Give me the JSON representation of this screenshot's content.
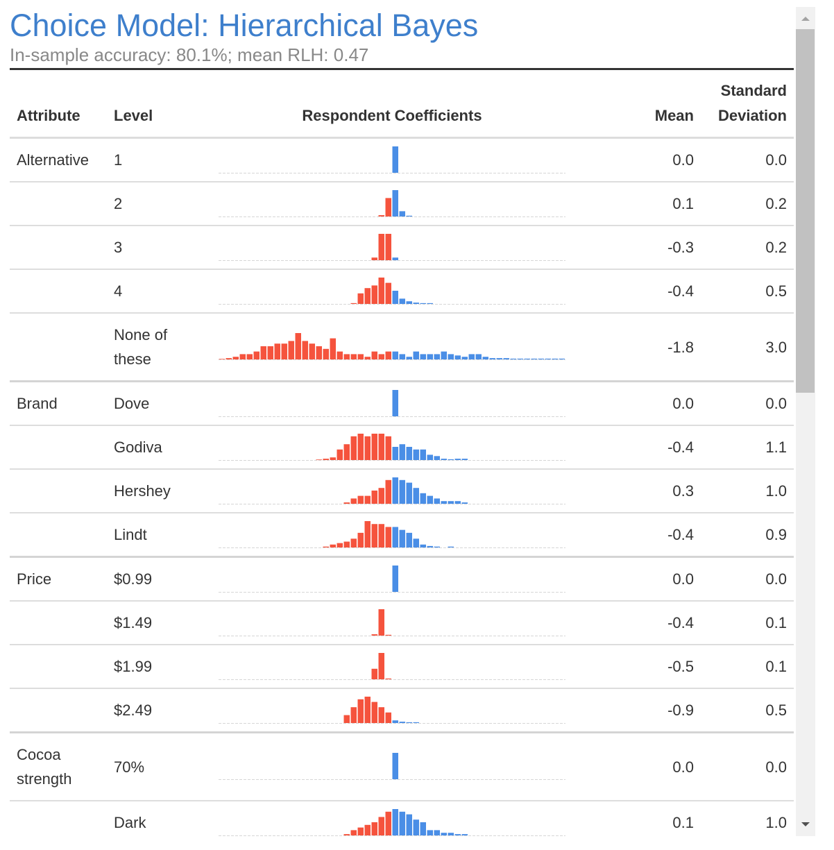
{
  "title": "Choice Model: Hierarchical Bayes",
  "subtitle": "In-sample accuracy: 80.1%; mean RLH: 0.47",
  "negative_color": "#f5533d",
  "positive_color": "#4a8ee6",
  "columns": [
    "Attribute",
    "Level",
    "Respondent Coefficients",
    "Mean",
    "Standard Deviation"
  ],
  "groups": [
    {
      "attribute": "Alternative",
      "levels": [
        {
          "level": "1",
          "mean": "0.0",
          "sd": "0.0",
          "histogram": [
            0,
            0,
            0,
            0,
            0,
            0,
            0,
            0,
            0,
            0,
            0,
            0,
            0,
            0,
            0,
            0,
            0,
            0,
            0,
            0,
            0,
            0,
            0,
            0,
            0,
            10,
            0,
            0,
            0,
            0,
            0,
            0,
            0,
            0,
            0,
            0,
            0,
            0,
            0,
            0,
            0,
            0,
            0,
            0,
            0,
            0,
            0,
            0,
            0,
            0
          ]
        },
        {
          "level": "2",
          "mean": "0.1",
          "sd": "0.2",
          "histogram": [
            0,
            0,
            0,
            0,
            0,
            0,
            0,
            0,
            0,
            0,
            0,
            0,
            0,
            0,
            0,
            0,
            0,
            0,
            0,
            0,
            0,
            0,
            0,
            0.5,
            7,
            10,
            2,
            0.3,
            0,
            0,
            0,
            0,
            0,
            0,
            0,
            0,
            0,
            0,
            0,
            0,
            0,
            0,
            0,
            0,
            0,
            0,
            0,
            0,
            0,
            0
          ]
        },
        {
          "level": "3",
          "mean": "-0.3",
          "sd": "0.2",
          "histogram": [
            0,
            0,
            0,
            0,
            0,
            0,
            0,
            0,
            0,
            0,
            0,
            0,
            0,
            0,
            0,
            0,
            0,
            0,
            0,
            0,
            0,
            0,
            1,
            10,
            10,
            1,
            0,
            0,
            0,
            0,
            0,
            0,
            0,
            0,
            0,
            0,
            0,
            0,
            0,
            0,
            0,
            0,
            0,
            0,
            0,
            0,
            0,
            0,
            0,
            0
          ]
        },
        {
          "level": "4",
          "mean": "-0.4",
          "sd": "0.5",
          "histogram": [
            0,
            0,
            0,
            0,
            0,
            0,
            0,
            0,
            0,
            0,
            0,
            0,
            0,
            0,
            0,
            0,
            0,
            0,
            0,
            0.3,
            4,
            6,
            7,
            10,
            8,
            5,
            2,
            1,
            0.5,
            0.3,
            0.3,
            0,
            0,
            0,
            0,
            0,
            0,
            0,
            0,
            0,
            0,
            0,
            0,
            0,
            0,
            0,
            0,
            0,
            0,
            0
          ]
        },
        {
          "level": "None of these",
          "mean": "-1.8",
          "sd": "3.0",
          "histogram": [
            0.2,
            0.5,
            1,
            2,
            2,
            3,
            5,
            5,
            6,
            6,
            7,
            10,
            7,
            6,
            5,
            4,
            8,
            3,
            2,
            2,
            2,
            1,
            3,
            2,
            3,
            3,
            2,
            1,
            3,
            2,
            2,
            2,
            3,
            2,
            1.5,
            1,
            2,
            2,
            1,
            0.5,
            0.5,
            0.5,
            0.3,
            0.3,
            0.3,
            0.3,
            0.3,
            0.3,
            0.3,
            0.3
          ]
        }
      ]
    },
    {
      "attribute": "Brand",
      "levels": [
        {
          "level": "Dove",
          "mean": "0.0",
          "sd": "0.0",
          "histogram": [
            0,
            0,
            0,
            0,
            0,
            0,
            0,
            0,
            0,
            0,
            0,
            0,
            0,
            0,
            0,
            0,
            0,
            0,
            0,
            0,
            0,
            0,
            0,
            0,
            0,
            10,
            0,
            0,
            0,
            0,
            0,
            0,
            0,
            0,
            0,
            0,
            0,
            0,
            0,
            0,
            0,
            0,
            0,
            0,
            0,
            0,
            0,
            0,
            0,
            0
          ]
        },
        {
          "level": "Godiva",
          "mean": "-0.4",
          "sd": "1.1",
          "histogram": [
            0,
            0,
            0,
            0,
            0,
            0,
            0,
            0,
            0,
            0,
            0,
            0,
            0,
            0,
            0.2,
            0.5,
            1,
            4,
            6,
            9,
            10,
            9,
            10,
            10,
            9,
            5,
            6,
            5,
            4,
            4,
            2,
            1.5,
            0.5,
            0.3,
            0.5,
            0.5,
            0,
            0,
            0,
            0,
            0,
            0,
            0,
            0,
            0,
            0,
            0,
            0,
            0,
            0
          ]
        },
        {
          "level": "Hershey",
          "mean": "0.3",
          "sd": "1.0",
          "histogram": [
            0,
            0,
            0,
            0,
            0,
            0,
            0,
            0,
            0,
            0,
            0,
            0,
            0,
            0,
            0,
            0,
            0,
            0,
            0.5,
            2,
            3,
            3,
            5,
            6,
            9,
            10,
            9,
            8,
            6,
            4,
            3,
            2,
            1,
            1,
            1,
            0.5,
            0,
            0,
            0,
            0,
            0,
            0,
            0,
            0,
            0,
            0,
            0,
            0,
            0,
            0
          ]
        },
        {
          "level": "Lindt",
          "mean": "-0.4",
          "sd": "0.9",
          "histogram": [
            0,
            0,
            0,
            0,
            0,
            0,
            0,
            0,
            0,
            0,
            0,
            0,
            0,
            0,
            0,
            0.3,
            1,
            1.5,
            2,
            3,
            5,
            9,
            8,
            8,
            7,
            7,
            6,
            5,
            3,
            1,
            0.5,
            0.3,
            0,
            0.3,
            0,
            0,
            0,
            0,
            0,
            0,
            0,
            0,
            0,
            0,
            0,
            0,
            0,
            0,
            0,
            0
          ]
        }
      ]
    },
    {
      "attribute": "Price",
      "levels": [
        {
          "level": "$0.99",
          "mean": "0.0",
          "sd": "0.0",
          "histogram": [
            0,
            0,
            0,
            0,
            0,
            0,
            0,
            0,
            0,
            0,
            0,
            0,
            0,
            0,
            0,
            0,
            0,
            0,
            0,
            0,
            0,
            0,
            0,
            0,
            0,
            10,
            0,
            0,
            0,
            0,
            0,
            0,
            0,
            0,
            0,
            0,
            0,
            0,
            0,
            0,
            0,
            0,
            0,
            0,
            0,
            0,
            0,
            0,
            0,
            0
          ]
        },
        {
          "level": "$1.49",
          "mean": "-0.4",
          "sd": "0.1",
          "histogram": [
            0,
            0,
            0,
            0,
            0,
            0,
            0,
            0,
            0,
            0,
            0,
            0,
            0,
            0,
            0,
            0,
            0,
            0,
            0,
            0,
            0,
            0,
            0.5,
            10,
            0.3,
            0,
            0,
            0,
            0,
            0,
            0,
            0,
            0,
            0,
            0,
            0,
            0,
            0,
            0,
            0,
            0,
            0,
            0,
            0,
            0,
            0,
            0,
            0,
            0,
            0
          ]
        },
        {
          "level": "$1.99",
          "mean": "-0.5",
          "sd": "0.1",
          "histogram": [
            0,
            0,
            0,
            0,
            0,
            0,
            0,
            0,
            0,
            0,
            0,
            0,
            0,
            0,
            0,
            0,
            0,
            0,
            0,
            0,
            0,
            0,
            4,
            10,
            0.3,
            0,
            0,
            0,
            0,
            0,
            0,
            0,
            0,
            0,
            0,
            0,
            0,
            0,
            0,
            0,
            0,
            0,
            0,
            0,
            0,
            0,
            0,
            0,
            0,
            0
          ]
        },
        {
          "level": "$2.49",
          "mean": "-0.9",
          "sd": "0.5",
          "histogram": [
            0,
            0,
            0,
            0,
            0,
            0,
            0,
            0,
            0,
            0,
            0,
            0,
            0,
            0,
            0,
            0,
            0,
            0,
            3,
            6,
            9,
            10,
            8,
            6,
            4,
            1,
            0.5,
            0.3,
            0.3,
            0,
            0,
            0,
            0,
            0,
            0,
            0,
            0,
            0,
            0,
            0,
            0,
            0,
            0,
            0,
            0,
            0,
            0,
            0,
            0,
            0
          ]
        }
      ]
    },
    {
      "attribute": "Cocoa strength",
      "levels": [
        {
          "level": "70%",
          "mean": "0.0",
          "sd": "0.0",
          "histogram": [
            0,
            0,
            0,
            0,
            0,
            0,
            0,
            0,
            0,
            0,
            0,
            0,
            0,
            0,
            0,
            0,
            0,
            0,
            0,
            0,
            0,
            0,
            0,
            0,
            0,
            10,
            0,
            0,
            0,
            0,
            0,
            0,
            0,
            0,
            0,
            0,
            0,
            0,
            0,
            0,
            0,
            0,
            0,
            0,
            0,
            0,
            0,
            0,
            0,
            0
          ]
        },
        {
          "level": "Dark",
          "mean": "0.1",
          "sd": "1.0",
          "histogram": [
            0,
            0,
            0,
            0,
            0,
            0,
            0,
            0,
            0,
            0,
            0,
            0,
            0,
            0,
            0,
            0,
            0,
            0,
            0.5,
            2,
            3,
            4,
            5,
            7,
            9,
            10,
            9,
            8,
            6,
            5,
            2,
            2,
            1,
            1,
            0.5,
            0.5,
            0,
            0,
            0,
            0,
            0,
            0,
            0,
            0,
            0,
            0,
            0,
            0,
            0,
            0
          ]
        }
      ]
    }
  ]
}
